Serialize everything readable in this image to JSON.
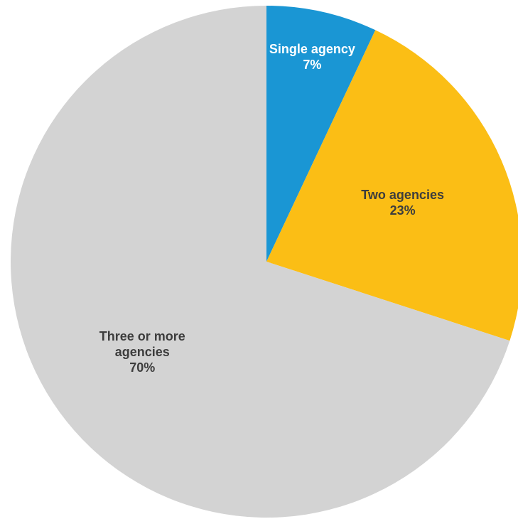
{
  "chart_data": {
    "type": "pie",
    "start_angle_deg": 0,
    "direction": "clockwise",
    "slices": [
      {
        "label": [
          "Single agency"
        ],
        "value_label": "7%",
        "value": 7,
        "color": "#1a96d4",
        "label_color": "#ffffff"
      },
      {
        "label": [
          "Two agencies"
        ],
        "value_label": "23%",
        "value": 23,
        "color": "#fbbe15",
        "label_color": "#3d3d3d"
      },
      {
        "label": [
          "Three or more",
          "agencies"
        ],
        "value_label": "70%",
        "value": 70,
        "color": "#d3d3d3",
        "label_color": "#3d3d3d"
      }
    ]
  }
}
